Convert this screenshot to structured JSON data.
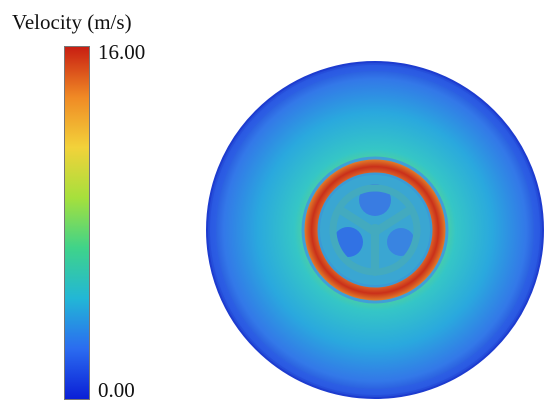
{
  "legend": {
    "title": "Velocity (m/s)",
    "max_label": "16.00",
    "min_label": "0.00",
    "range": [
      0,
      16
    ],
    "stops": [
      "#0a1fd6",
      "#2b6cf0",
      "#22b7d6",
      "#3fd38a",
      "#a6e03c",
      "#f2d23a",
      "#f08a25",
      "#c81e12"
    ]
  },
  "field": {
    "shape": "circular domain",
    "outer_color": "#3a6fe6",
    "mid_color": "#2fb8df",
    "ring_color": "#d2451c",
    "core_color": "#3aa8cf"
  }
}
